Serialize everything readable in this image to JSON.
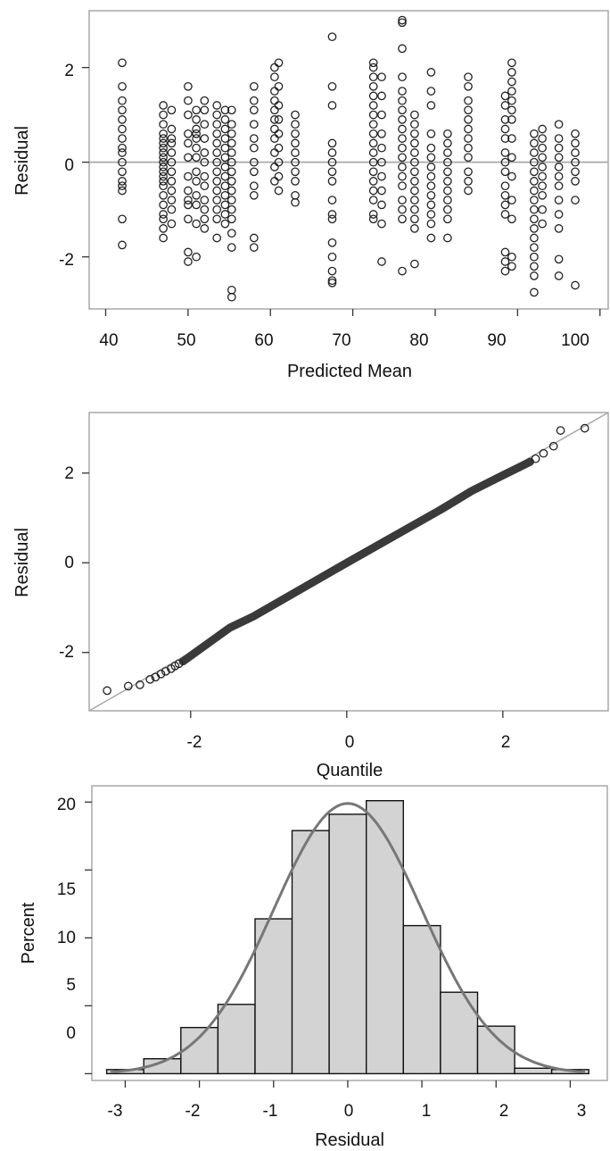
{
  "colors": {
    "frame": "#9a9a9a",
    "axis": "#333333",
    "marker": "#222222",
    "refline": "#a8a8a8",
    "bar_fill": "#d3d3d3",
    "bar_edge": "#111111",
    "density": "#777777"
  },
  "chart_data": [
    {
      "type": "scatter",
      "xlabel": "Predicted Mean",
      "ylabel": "Residual",
      "xlim": [
        38,
        101
      ],
      "ylim": [
        -3.1,
        3.2
      ],
      "xticks": [
        "40",
        "50",
        "60",
        "70",
        "80",
        "90",
        "100"
      ],
      "yticks": [
        "-2",
        "0",
        "2"
      ],
      "reference_line": {
        "y": 0
      },
      "marker": "open-circle",
      "grid": false,
      "groups": [
        {
          "x": 42,
          "y": [
            2.1,
            1.6,
            1.3,
            1.1,
            0.9,
            0.7,
            0.5,
            0.3,
            0.2,
            0.0,
            -0.2,
            -0.4,
            -0.5,
            -0.6,
            -1.2,
            -1.75
          ]
        },
        {
          "x": 47,
          "y": [
            1.2,
            1.0,
            0.8,
            0.6,
            0.5,
            0.4,
            0.3,
            0.2,
            0.1,
            0.0,
            -0.1,
            -0.2,
            -0.3,
            -0.4,
            -0.5,
            -0.7,
            -0.9,
            -1.1,
            -1.2,
            -1.4,
            -1.6
          ]
        },
        {
          "x": 48,
          "y": [
            1.1,
            0.7,
            0.5,
            0.4,
            0.2,
            0.0,
            -0.2,
            -0.4,
            -0.6,
            -0.8,
            -1.0,
            -1.3
          ]
        },
        {
          "x": 50,
          "y": [
            1.6,
            1.3,
            1.0,
            0.6,
            0.4,
            0.1,
            -0.3,
            -0.6,
            -0.8,
            -0.9,
            -1.2,
            -1.9,
            -2.1
          ]
        },
        {
          "x": 51,
          "y": [
            1.1,
            0.9,
            0.7,
            0.6,
            0.5,
            0.3,
            0.1,
            -0.2,
            -0.4,
            -0.7,
            -0.9,
            -1.3,
            -2.0
          ]
        },
        {
          "x": 52,
          "y": [
            1.3,
            1.1,
            0.8,
            0.5,
            0.2,
            0.0,
            -0.3,
            -0.5,
            -0.8,
            -1.0,
            -1.2,
            -1.4
          ]
        },
        {
          "x": 53.5,
          "y": [
            1.2,
            1.0,
            0.8,
            0.6,
            0.4,
            0.2,
            0.0,
            -0.2,
            -0.4,
            -0.6,
            -0.8,
            -1.0,
            -1.2,
            -1.6
          ]
        },
        {
          "x": 54.5,
          "y": [
            1.1,
            0.9,
            0.7,
            0.5,
            0.3,
            0.1,
            -0.1,
            -0.3,
            -0.5,
            -0.7,
            -0.9,
            -1.1,
            -1.3
          ]
        },
        {
          "x": 55.3,
          "y": [
            1.1,
            0.8,
            0.6,
            0.4,
            0.2,
            0.0,
            -0.2,
            -0.4,
            -0.6,
            -0.8,
            -1.0,
            -1.2,
            -1.5,
            -1.8,
            -2.7,
            -2.85
          ]
        },
        {
          "x": 58,
          "y": [
            1.6,
            1.3,
            1.1,
            0.8,
            0.5,
            0.3,
            0.0,
            -0.2,
            -0.5,
            -0.7,
            -1.6,
            -1.8
          ]
        },
        {
          "x": 60.5,
          "y": [
            2.0,
            1.8,
            1.5,
            1.3,
            1.1,
            0.9,
            0.7,
            0.5,
            0.2,
            -0.1,
            -0.4
          ]
        },
        {
          "x": 61,
          "y": [
            2.1,
            1.6,
            1.2,
            0.9,
            0.6,
            0.3,
            0.0,
            -0.3,
            -0.6
          ]
        },
        {
          "x": 63,
          "y": [
            1.0,
            0.8,
            0.6,
            0.4,
            0.2,
            0.0,
            -0.2,
            -0.4,
            -0.7,
            -0.85
          ]
        },
        {
          "x": 67.5,
          "y": [
            2.65,
            1.6,
            1.2,
            0.4,
            0.2,
            0.0,
            -0.2,
            -0.4,
            -0.8,
            -1.1,
            -1.2,
            -1.7,
            -2.0,
            -2.3,
            -2.5,
            -2.55
          ]
        },
        {
          "x": 72.5,
          "y": [
            2.1,
            2.0,
            1.8,
            1.6,
            1.4,
            1.2,
            1.0,
            0.8,
            0.6,
            0.4,
            0.2,
            0.0,
            -0.2,
            -0.4,
            -0.6,
            -0.8,
            -1.1,
            -1.2
          ]
        },
        {
          "x": 73.5,
          "y": [
            1.8,
            1.4,
            1.0,
            0.6,
            0.3,
            0.0,
            -0.3,
            -0.6,
            -0.9,
            -1.3,
            -2.1
          ]
        },
        {
          "x": 76,
          "y": [
            3.0,
            2.95,
            2.4,
            1.8,
            1.5,
            1.3,
            1.1,
            0.9,
            0.7,
            0.5,
            0.3,
            0.1,
            -0.1,
            -0.3,
            -0.5,
            -0.8,
            -1.0,
            -1.2,
            -2.3
          ]
        },
        {
          "x": 77.5,
          "y": [
            1.0,
            0.8,
            0.6,
            0.4,
            0.2,
            0.0,
            -0.2,
            -0.4,
            -0.6,
            -0.8,
            -1.0,
            -1.2,
            -1.4,
            -2.15
          ]
        },
        {
          "x": 79.5,
          "y": [
            1.9,
            1.5,
            1.2,
            0.6,
            0.3,
            0.1,
            -0.1,
            -0.3,
            -0.5,
            -0.7,
            -0.9,
            -1.1,
            -1.3,
            -1.6
          ]
        },
        {
          "x": 81.5,
          "y": [
            0.6,
            0.4,
            0.2,
            0.0,
            -0.2,
            -0.4,
            -0.6,
            -0.8,
            -1.0,
            -1.2,
            -1.6
          ]
        },
        {
          "x": 84,
          "y": [
            1.8,
            1.6,
            1.3,
            1.1,
            0.9,
            0.7,
            0.5,
            0.3,
            0.1,
            -0.2,
            -0.4,
            -0.6
          ]
        },
        {
          "x": 88.5,
          "y": [
            1.4,
            1.2,
            0.9,
            0.7,
            0.5,
            0.2,
            0.0,
            -0.2,
            -0.5,
            -0.7,
            -0.9,
            -1.1,
            -1.9,
            -2.1,
            -2.3
          ]
        },
        {
          "x": 89.3,
          "y": [
            2.1,
            1.9,
            1.7,
            1.5,
            1.3,
            1.1,
            0.9,
            0.5,
            0.1,
            -0.3,
            -0.8,
            -1.2,
            -2.0,
            -2.2
          ]
        },
        {
          "x": 92,
          "y": [
            0.6,
            0.4,
            0.2,
            0.0,
            -0.2,
            -0.4,
            -0.6,
            -0.8,
            -1.0,
            -1.2,
            -1.4,
            -1.6,
            -1.8,
            -2.0,
            -2.2,
            -2.4,
            -2.75
          ]
        },
        {
          "x": 93,
          "y": [
            0.7,
            0.5,
            0.3,
            0.1,
            -0.1,
            -0.3,
            -0.5,
            -0.7,
            -1.0,
            -1.3
          ]
        },
        {
          "x": 95,
          "y": [
            0.8,
            0.5,
            0.3,
            0.1,
            -0.1,
            -0.3,
            -0.5,
            -0.8,
            -1.1,
            -1.4,
            -2.05,
            -2.4
          ]
        },
        {
          "x": 97,
          "y": [
            0.6,
            0.4,
            0.2,
            0.0,
            -0.2,
            -0.4,
            -0.8,
            -2.6
          ]
        }
      ]
    },
    {
      "type": "scatter",
      "subtype": "qq",
      "xlabel": "Quantile",
      "ylabel": "Residual",
      "xlim": [
        -3.3,
        3.35
      ],
      "ylim": [
        -3.3,
        3.35
      ],
      "xticks": [
        "-2",
        "0",
        "2"
      ],
      "yticks": [
        "-2",
        "0",
        "2"
      ],
      "reference_line": {
        "slope": 1,
        "intercept": 0
      },
      "marker": "open-circle",
      "grid": false,
      "points": [
        [
          -3.07,
          -2.85
        ],
        [
          -2.8,
          -2.75
        ],
        [
          -2.65,
          -2.72
        ],
        [
          -2.52,
          -2.6
        ],
        [
          -2.45,
          -2.55
        ],
        [
          -2.38,
          -2.48
        ],
        [
          -2.32,
          -2.42
        ],
        [
          -2.25,
          -2.36
        ],
        [
          -2.2,
          -2.3
        ],
        [
          -2.15,
          -2.25
        ],
        [
          2.42,
          2.32
        ],
        [
          2.52,
          2.44
        ],
        [
          2.65,
          2.6
        ],
        [
          2.74,
          2.95
        ],
        [
          3.05,
          3.0
        ]
      ],
      "dense_band": [
        [
          -2.1,
          -2.2
        ],
        [
          -1.5,
          -1.45
        ],
        [
          -1.2,
          -1.2
        ],
        [
          0.0,
          0.0
        ],
        [
          1.2,
          1.18
        ],
        [
          1.6,
          1.6
        ],
        [
          2.0,
          1.95
        ],
        [
          2.35,
          2.25
        ]
      ]
    },
    {
      "type": "bar",
      "subtype": "histogram",
      "xlabel": "Residual",
      "ylabel": "Percent",
      "xlim": [
        -3.45,
        3.5
      ],
      "ylim": [
        -0.5,
        21.2
      ],
      "xticks": [
        "-3",
        "-2",
        "-1",
        "0",
        "1",
        "2",
        "3"
      ],
      "yticks": [
        "0",
        "5",
        "10",
        "15",
        "20"
      ],
      "bin_edges": [
        -3.25,
        -2.75,
        -2.25,
        -1.75,
        -1.25,
        -0.75,
        -0.25,
        0.25,
        0.75,
        1.25,
        1.75,
        2.25,
        2.75,
        3.25
      ],
      "values": [
        0.3,
        1.1,
        3.4,
        5.1,
        11.4,
        17.9,
        19.1,
        20.1,
        10.9,
        6.0,
        3.5,
        0.4,
        0.3
      ],
      "density_curve": {
        "type": "normal",
        "mean": 0,
        "sd": 1,
        "peak_percent": 19.9
      },
      "grid": false
    }
  ]
}
